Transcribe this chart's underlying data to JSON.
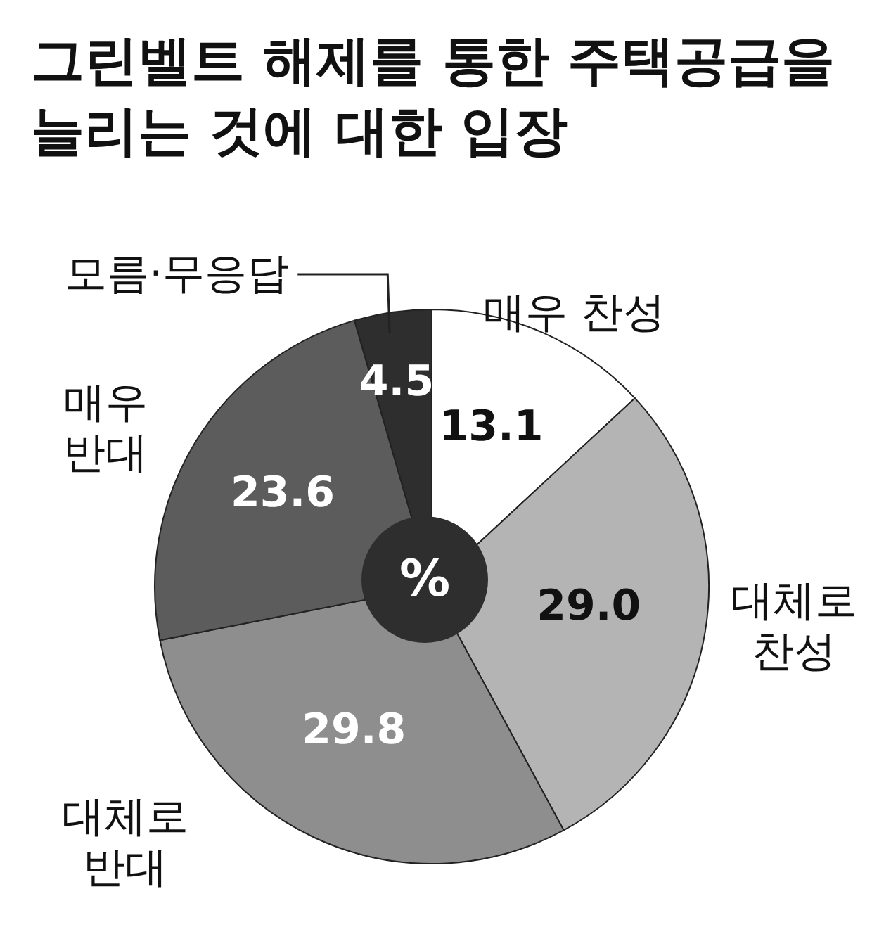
{
  "chart_data": {
    "type": "pie",
    "title": "그린벨트 해제를 통한 주택공급을 늘리는 것에 대한 입장",
    "categories": [
      "매우 찬성",
      "대체로\n찬성",
      "대체로\n반대",
      "매우\n반대",
      "모름·무응답"
    ],
    "values": [
      13.1,
      29.0,
      29.8,
      23.6,
      4.5
    ],
    "colors": [
      "#ffffff",
      "#b4b4b4",
      "#8e8e8e",
      "#5c5c5c",
      "#2e2e2e"
    ],
    "value_labels": [
      "13.1",
      "29.0",
      "29.8",
      "23.6",
      "4.5"
    ],
    "annotations": [
      "%"
    ]
  }
}
